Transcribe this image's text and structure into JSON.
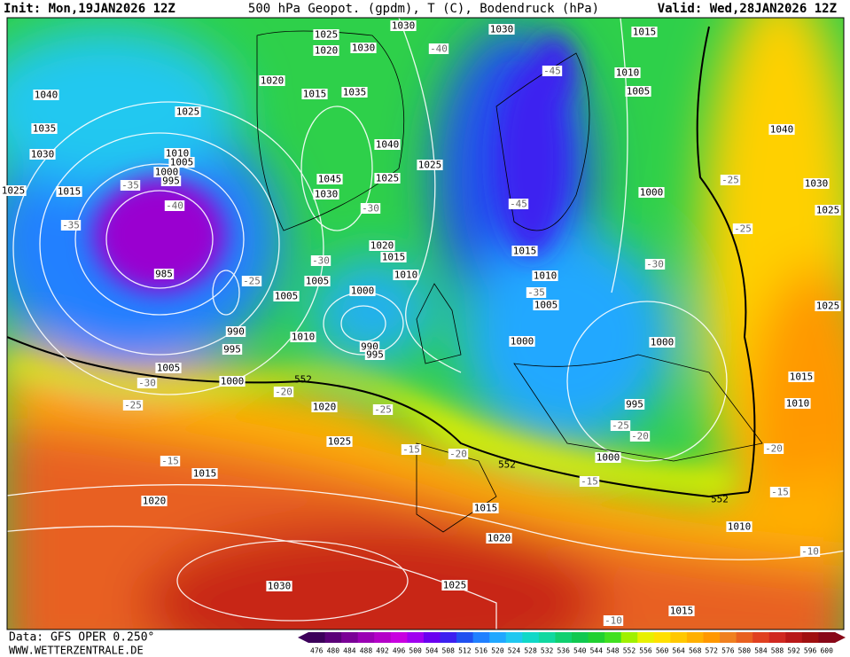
{
  "header": {
    "init": "Init: Mon,19JAN2026 12Z",
    "title": "500 hPa Geopot. (gpdm), T (C), Bodendruck (hPa)",
    "valid": "Valid: Wed,28JAN2026 12Z"
  },
  "footer": {
    "source": "Data: GFS OPER 0.250°",
    "site": "WWW.WETTERZENTRALE.DE"
  },
  "colorbar": {
    "ticks": [
      476,
      480,
      484,
      488,
      492,
      496,
      500,
      504,
      508,
      512,
      516,
      520,
      524,
      528,
      532,
      536,
      540,
      544,
      548,
      552,
      556,
      560,
      564,
      568,
      572,
      576,
      580,
      584,
      588,
      592,
      596,
      600
    ],
    "colors": [
      "#3c005a",
      "#5a0078",
      "#7a0096",
      "#9a00b4",
      "#b400c8",
      "#c800e0",
      "#a000f0",
      "#6a00f0",
      "#3c20f0",
      "#2050f0",
      "#2080ff",
      "#20a8ff",
      "#20c8f0",
      "#10d8c8",
      "#10d8a0",
      "#10d070",
      "#10c850",
      "#20d030",
      "#40e020",
      "#a0f000",
      "#e8f000",
      "#ffe000",
      "#ffc800",
      "#ffb000",
      "#ff9800",
      "#f08020",
      "#e86020",
      "#e04020",
      "#d02820",
      "#b81818",
      "#a01010",
      "#880818"
    ]
  },
  "map": {
    "isobar_labels": [
      "1030",
      "1025",
      "1020",
      "1030",
      "1030",
      "1015",
      "1010",
      "1005",
      "1040",
      "1025",
      "1020",
      "1015",
      "1035",
      "1035",
      "1030",
      "1010",
      "1005",
      "1000",
      "995",
      "1015",
      "1025",
      "1040",
      "1045",
      "1030",
      "1025",
      "1025",
      "1000",
      "1040",
      "1030",
      "1025",
      "1020",
      "1015",
      "1015",
      "1010",
      "1010",
      "1005",
      "1005",
      "1000",
      "1005",
      "985",
      "990",
      "995",
      "1010",
      "990",
      "995",
      "1000",
      "1000",
      "1005",
      "1000",
      "1015",
      "1010",
      "995",
      "1020",
      "1025",
      "1000",
      "1015",
      "1020",
      "1015",
      "1010",
      "1020",
      "1030",
      "1025",
      "1015",
      "1025"
    ],
    "temp_labels": [
      "-40",
      "-45",
      "-35",
      "-40",
      "-35",
      "-30",
      "-45",
      "-25",
      "-25",
      "-30",
      "-30",
      "-25",
      "-35",
      "-30",
      "-25",
      "-20",
      "-25",
      "-15",
      "-20",
      "-15",
      "-15",
      "-25",
      "-20",
      "-20",
      "-15",
      "-10",
      "-10"
    ],
    "line_552_labels": [
      "552",
      "552",
      "552"
    ]
  }
}
